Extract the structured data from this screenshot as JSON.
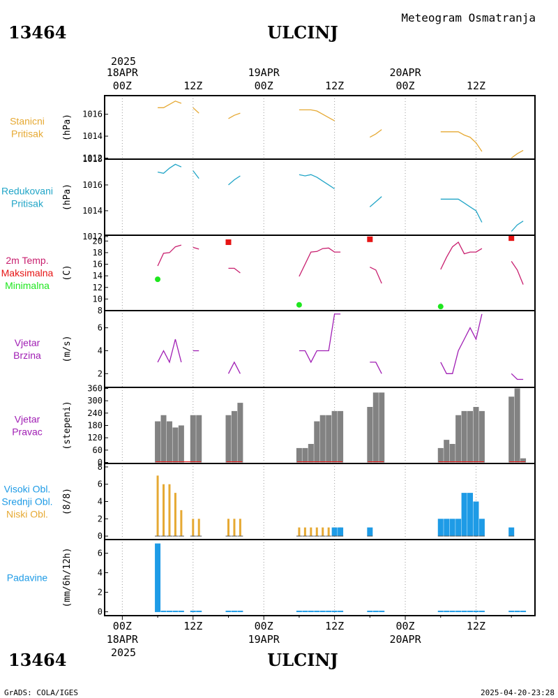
{
  "header": {
    "station_id": "13464",
    "station_name": "ULCINJ",
    "subtitle": "Meteogram Osmatranja"
  },
  "footer": {
    "station_id": "13464",
    "station_name": "ULCINJ",
    "credit": "GrADS: COLA/IGES",
    "timestamp": "2025-04-20-23:28"
  },
  "colors": {
    "pressure": "#e6a933",
    "reduced_pressure": "#21a5c7",
    "temp": "#c81e6e",
    "tmax": "#e61414",
    "tmin": "#1ee61e",
    "wind": "#a01eb4",
    "wind_dir": "#828282",
    "high_cloud": "#1e9be6",
    "low_cloud": "#e6a933",
    "precip": "#1e9be6"
  },
  "time_axis": {
    "top_year": "2025",
    "bottom_year": "2025",
    "ticks": [
      {
        "x": 0,
        "label": "00Z",
        "date": "18APR"
      },
      {
        "x": 12,
        "label": "12Z",
        "date": ""
      },
      {
        "x": 24,
        "label": "00Z",
        "date": "19APR"
      },
      {
        "x": 36,
        "label": "12Z",
        "date": ""
      },
      {
        "x": 48,
        "label": "00Z",
        "date": "20APR"
      },
      {
        "x": 60,
        "label": "12Z",
        "date": ""
      }
    ],
    "xlim": [
      -3,
      70
    ]
  },
  "chart_data": [
    {
      "type": "line",
      "id": "stanicni",
      "title_lines": [
        "Stanicni",
        "Pritisak"
      ],
      "ylabel": "(hPa)",
      "ylim": [
        1011.9,
        1017.7
      ],
      "yticks": [
        1012,
        1014,
        1016
      ],
      "series": [
        {
          "x": [
            6,
            7,
            8,
            9,
            10
          ],
          "y": [
            1016.6,
            1016.6,
            1016.9,
            1017.2,
            1017.0
          ]
        },
        {
          "x": [
            12,
            13
          ],
          "y": [
            1016.6,
            1016.1
          ]
        },
        {
          "x": [
            18,
            19,
            20
          ],
          "y": [
            1015.6,
            1015.9,
            1016.1
          ]
        },
        {
          "x": [
            30,
            31,
            32,
            33,
            34,
            35,
            36
          ],
          "y": [
            1016.4,
            1016.4,
            1016.4,
            1016.3,
            1016.0,
            1015.7,
            1015.4
          ]
        },
        {
          "x": [
            42,
            43,
            44
          ],
          "y": [
            1013.9,
            1014.2,
            1014.6
          ]
        },
        {
          "x": [
            54,
            55,
            56,
            57,
            58,
            59,
            60,
            61
          ],
          "y": [
            1014.4,
            1014.4,
            1014.4,
            1014.4,
            1014.1,
            1013.9,
            1013.4,
            1012.6
          ]
        },
        {
          "x": [
            66,
            67,
            68
          ],
          "y": [
            1012.0,
            1012.4,
            1012.7
          ]
        }
      ]
    },
    {
      "type": "line",
      "id": "redukovani",
      "title_lines": [
        "Redukovani",
        "Pritisak"
      ],
      "ylabel": "(hPa)",
      "ylim": [
        1012.1,
        1018.0
      ],
      "yticks": [
        1012,
        1014,
        1016,
        1018
      ],
      "series": [
        {
          "x": [
            6,
            7,
            8,
            9,
            10
          ],
          "y": [
            1017.0,
            1016.9,
            1017.3,
            1017.6,
            1017.4
          ]
        },
        {
          "x": [
            12,
            13
          ],
          "y": [
            1017.1,
            1016.5
          ]
        },
        {
          "x": [
            18,
            19,
            20
          ],
          "y": [
            1016.0,
            1016.4,
            1016.7
          ]
        },
        {
          "x": [
            30,
            31,
            32,
            33,
            34,
            35,
            36
          ],
          "y": [
            1016.8,
            1016.7,
            1016.8,
            1016.6,
            1016.3,
            1016.0,
            1015.7
          ]
        },
        {
          "x": [
            42,
            43,
            44
          ],
          "y": [
            1014.3,
            1014.7,
            1015.1
          ]
        },
        {
          "x": [
            54,
            55,
            56,
            57,
            58,
            59,
            60,
            61
          ],
          "y": [
            1014.9,
            1014.9,
            1014.9,
            1014.9,
            1014.6,
            1014.3,
            1014.0,
            1013.1
          ]
        },
        {
          "x": [
            66,
            67,
            68
          ],
          "y": [
            1012.4,
            1012.9,
            1013.2
          ]
        }
      ]
    },
    {
      "type": "line",
      "id": "temp",
      "title_lines": [
        "2m Temp.",
        "Maksimalna",
        "Minimalna"
      ],
      "ylabel": "(C)",
      "ylim": [
        8.0,
        21.0
      ],
      "yticks": [
        8,
        10,
        12,
        14,
        16,
        18,
        20
      ],
      "series": [
        {
          "name": "2m Temp.",
          "x": [
            6,
            7,
            8,
            9,
            10
          ],
          "y": [
            15.7,
            17.9,
            18.0,
            19.0,
            19.3
          ]
        },
        {
          "name": "2m Temp.",
          "x": [
            12,
            13
          ],
          "y": [
            18.9,
            18.6
          ]
        },
        {
          "name": "2m Temp.",
          "x": [
            18,
            19,
            20
          ],
          "y": [
            15.3,
            15.3,
            14.5
          ]
        },
        {
          "name": "2m Temp.",
          "x": [
            30,
            31,
            32,
            33,
            34,
            35,
            36,
            37
          ],
          "y": [
            13.9,
            16.0,
            18.1,
            18.2,
            18.7,
            18.8,
            18.1,
            18.1
          ]
        },
        {
          "name": "2m Temp.",
          "x": [
            42,
            43,
            44
          ],
          "y": [
            15.5,
            15.0,
            12.7
          ]
        },
        {
          "name": "2m Temp.",
          "x": [
            54,
            55,
            56,
            57,
            58,
            59,
            60,
            61
          ],
          "y": [
            15.1,
            17.2,
            19.0,
            19.8,
            17.8,
            18.1,
            18.1,
            18.7
          ]
        },
        {
          "name": "2m Temp.",
          "x": [
            66,
            67,
            68
          ],
          "y": [
            16.5,
            15.0,
            12.5
          ]
        }
      ],
      "maxima": {
        "name": "Maksimalna",
        "x": [
          18,
          42,
          66
        ],
        "y": [
          19.8,
          20.3,
          20.5
        ]
      },
      "minima": {
        "name": "Minimalna",
        "x": [
          6,
          30,
          54
        ],
        "y": [
          13.4,
          9.0,
          8.7
        ]
      }
    },
    {
      "type": "line",
      "id": "wind",
      "title_lines": [
        "Vjetar",
        "Brzina"
      ],
      "ylabel": "(m/s)",
      "ylim": [
        0.8,
        7.5
      ],
      "yticks": [
        2,
        4,
        6
      ],
      "series": [
        {
          "x": [
            6,
            7,
            8,
            9,
            10
          ],
          "y": [
            3,
            4,
            3,
            5,
            3
          ]
        },
        {
          "x": [
            12,
            13
          ],
          "y": [
            4,
            4
          ]
        },
        {
          "x": [
            18,
            19,
            20
          ],
          "y": [
            2,
            3,
            2
          ]
        },
        {
          "x": [
            30,
            31,
            32,
            33,
            34,
            35,
            36,
            37
          ],
          "y": [
            4,
            4,
            3,
            4,
            4,
            4,
            7.2,
            7.2
          ]
        },
        {
          "x": [
            42,
            43,
            44
          ],
          "y": [
            3,
            3,
            2
          ]
        },
        {
          "x": [
            54,
            55,
            56,
            57,
            58,
            59,
            60,
            61
          ],
          "y": [
            3,
            2,
            2,
            4,
            5,
            6,
            5,
            7.2
          ]
        },
        {
          "x": [
            66,
            67,
            68
          ],
          "y": [
            2,
            1.5,
            1.5
          ]
        }
      ]
    },
    {
      "type": "bar",
      "id": "winddir",
      "title_lines": [
        "Vjetar",
        "Pravac"
      ],
      "ylabel": "(stepeni)",
      "ylim": [
        -5,
        365
      ],
      "yticks": [
        0,
        60,
        120,
        180,
        240,
        300,
        360
      ],
      "x": [
        6,
        7,
        8,
        9,
        10,
        12,
        13,
        18,
        19,
        20,
        30,
        31,
        32,
        33,
        34,
        35,
        36,
        37,
        42,
        43,
        44,
        54,
        55,
        56,
        57,
        58,
        59,
        60,
        61,
        66,
        67,
        68
      ],
      "values": [
        200,
        230,
        200,
        170,
        180,
        230,
        230,
        230,
        250,
        290,
        70,
        70,
        90,
        200,
        230,
        230,
        250,
        250,
        270,
        340,
        340,
        70,
        110,
        90,
        230,
        250,
        250,
        270,
        250,
        320,
        360,
        20
      ]
    },
    {
      "type": "bar",
      "id": "clouds",
      "title_lines": [
        "Visoki Obl.",
        "Srednji Obl.",
        "Niski Obl."
      ],
      "ylabel": "(8/8)",
      "ylim": [
        -0.4,
        8.4
      ],
      "yticks": [
        0,
        2,
        4,
        6,
        8
      ],
      "series": [
        {
          "name": "Niski Obl.",
          "x": [
            6,
            7,
            8,
            9,
            10,
            12,
            13,
            18,
            19,
            20,
            30,
            31,
            32,
            33,
            34,
            35,
            36,
            37
          ],
          "values": [
            7,
            6,
            6,
            5,
            3,
            2,
            2,
            2,
            2,
            2,
            1,
            1,
            1,
            1,
            1,
            1,
            1,
            1
          ]
        },
        {
          "name": "Visoki Obl.",
          "x": [
            36,
            37,
            42,
            54,
            55,
            56,
            57,
            58,
            59,
            60,
            61,
            66
          ],
          "values": [
            1,
            1,
            1,
            2,
            2,
            2,
            2,
            5,
            5,
            4,
            2,
            1
          ]
        }
      ]
    },
    {
      "type": "bar",
      "id": "precip",
      "title_lines": [
        "Padavine"
      ],
      "ylabel": "(mm/6h/12h)",
      "ylim": [
        -0.4,
        7.4
      ],
      "yticks": [
        0,
        2,
        4,
        6
      ],
      "x": [
        6
      ],
      "values": [
        7.0
      ],
      "trace_x": [
        6,
        7,
        8,
        9,
        10,
        12,
        13,
        18,
        19,
        20,
        30,
        31,
        32,
        33,
        34,
        35,
        36,
        37,
        42,
        43,
        44,
        54,
        55,
        56,
        57,
        58,
        59,
        60,
        61,
        66,
        67,
        68
      ]
    }
  ]
}
